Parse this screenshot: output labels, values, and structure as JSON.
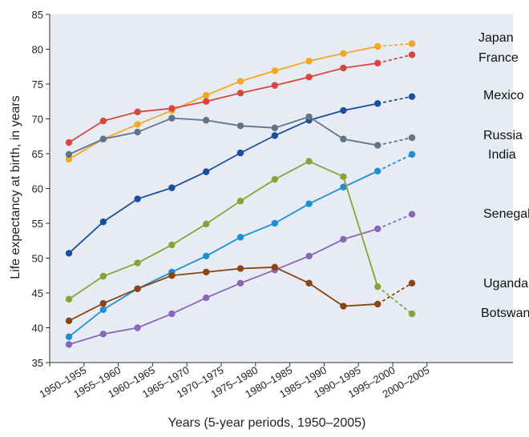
{
  "chart_data": {
    "type": "line",
    "xlabel": "Years (5-year periods, 1950–2005)",
    "ylabel": "Life expectancy at birth, in years",
    "ylim": [
      35,
      85
    ],
    "yticks": [
      35,
      40,
      45,
      50,
      55,
      60,
      65,
      70,
      75,
      80,
      85
    ],
    "categories": [
      "1950–1955",
      "1955–1960",
      "1960–1965",
      "1965–1970",
      "1970–1975",
      "1975–1980",
      "1980–1985",
      "1985–1990",
      "1990–1995",
      "1995–2000",
      "2000–2005"
    ],
    "projected_segment": "last period dashed",
    "background_color": "#e7ecf4",
    "series": [
      {
        "name": "Japan",
        "color": "#f5a623",
        "values": [
          64.2,
          67.1,
          69.2,
          71.2,
          73.4,
          75.4,
          76.9,
          78.3,
          79.4,
          80.4,
          80.8
        ]
      },
      {
        "name": "France",
        "color": "#d9463f",
        "values": [
          66.6,
          69.7,
          71.0,
          71.5,
          72.5,
          73.7,
          74.8,
          76.0,
          77.3,
          78.0,
          79.2
        ]
      },
      {
        "name": "Mexico",
        "color": "#1b4f9c",
        "values": [
          50.7,
          55.2,
          58.5,
          60.1,
          62.4,
          65.1,
          67.6,
          69.8,
          71.2,
          72.2,
          73.2
        ]
      },
      {
        "name": "Russia",
        "color": "#5f7488",
        "values": [
          64.9,
          67.1,
          68.1,
          70.1,
          69.8,
          69.0,
          68.7,
          70.3,
          67.1,
          66.2,
          67.3
        ]
      },
      {
        "name": "India",
        "color": "#1e8fd6",
        "values": [
          38.7,
          42.6,
          45.6,
          48.0,
          50.3,
          53.0,
          55.0,
          57.8,
          60.2,
          62.5,
          64.9
        ]
      },
      {
        "name": "Senegal",
        "color": "#8a66b8",
        "values": [
          37.6,
          39.1,
          40.0,
          42.0,
          44.3,
          46.4,
          48.3,
          50.3,
          52.7,
          54.2,
          56.3
        ]
      },
      {
        "name": "Uganda",
        "color": "#8b4513",
        "values": [
          41.0,
          43.5,
          45.6,
          47.5,
          48.0,
          48.5,
          48.7,
          46.4,
          43.1,
          43.4,
          46.4
        ]
      },
      {
        "name": "Botswana",
        "color": "#8aa235",
        "values": [
          44.1,
          47.4,
          49.3,
          51.9,
          54.9,
          58.2,
          61.3,
          63.9,
          61.7,
          45.9,
          42.0
        ]
      }
    ]
  }
}
